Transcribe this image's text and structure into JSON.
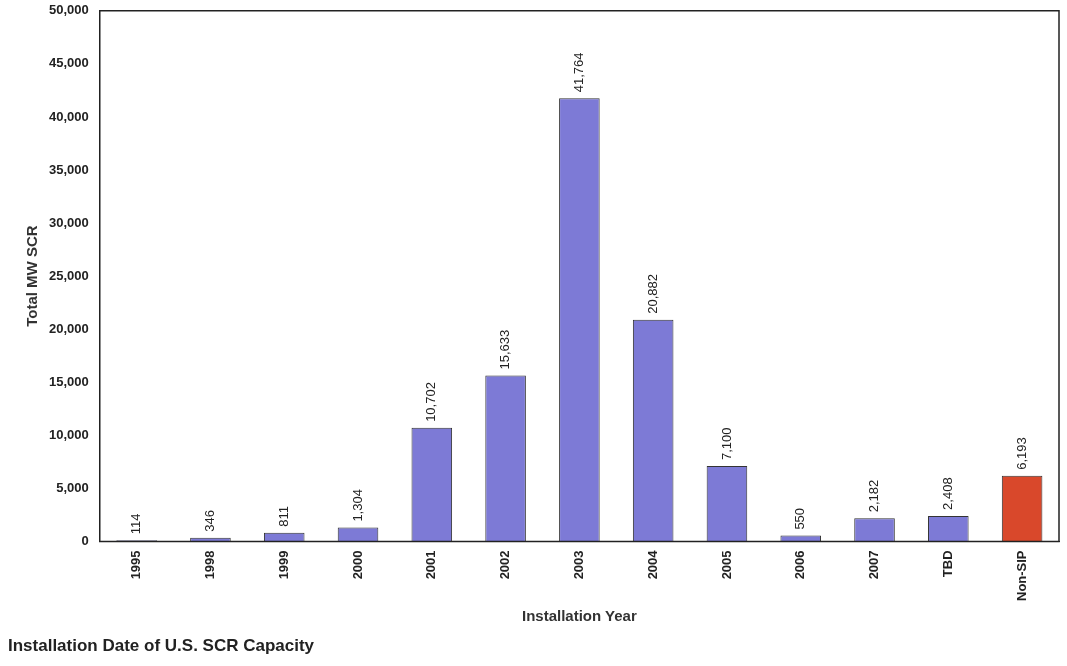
{
  "chart_data": {
    "type": "bar",
    "title": "Installation Date of U.S. SCR Capacity",
    "xlabel": "Installation Year",
    "ylabel": "Total MW SCR",
    "categories": [
      "1995",
      "1998",
      "1999",
      "2000",
      "2001",
      "2002",
      "2003",
      "2004",
      "2005",
      "2006",
      "2007",
      "TBD",
      "Non-SIP"
    ],
    "values": [
      114,
      346,
      811,
      1304,
      10702,
      15633,
      41764,
      20882,
      7100,
      550,
      2182,
      2408,
      6193
    ],
    "value_labels": [
      "114",
      "346",
      "811",
      "1,304",
      "10,702",
      "15,633",
      "41,764",
      "20,882",
      "7,100",
      "550",
      "2,182",
      "2,408",
      "6,193"
    ],
    "colors": [
      "#7d7ad6",
      "#7d7ad6",
      "#7d7ad6",
      "#7d7ad6",
      "#7d7ad6",
      "#7d7ad6",
      "#7d7ad6",
      "#7d7ad6",
      "#7d7ad6",
      "#7d7ad6",
      "#7d7ad6",
      "#7d7ad6",
      "#d9482b"
    ],
    "ylim": [
      0,
      50000
    ],
    "yticks": [
      0,
      {
        "value": 5000,
        "label": "5,000"
      },
      {
        "value": 10000,
        "label": "10,000"
      },
      {
        "value": 15000,
        "label": "15,000"
      },
      {
        "value": 20000,
        "label": "20,000"
      },
      {
        "value": 25000,
        "label": "25,000"
      },
      {
        "value": 30000,
        "label": "30,000"
      },
      {
        "value": 35000,
        "label": "35,000"
      },
      {
        "value": 40000,
        "label": "40,000"
      },
      {
        "value": 45000,
        "label": "45,000"
      },
      {
        "value": 50000,
        "label": "50,000"
      }
    ],
    "grid": false,
    "legend": false
  }
}
